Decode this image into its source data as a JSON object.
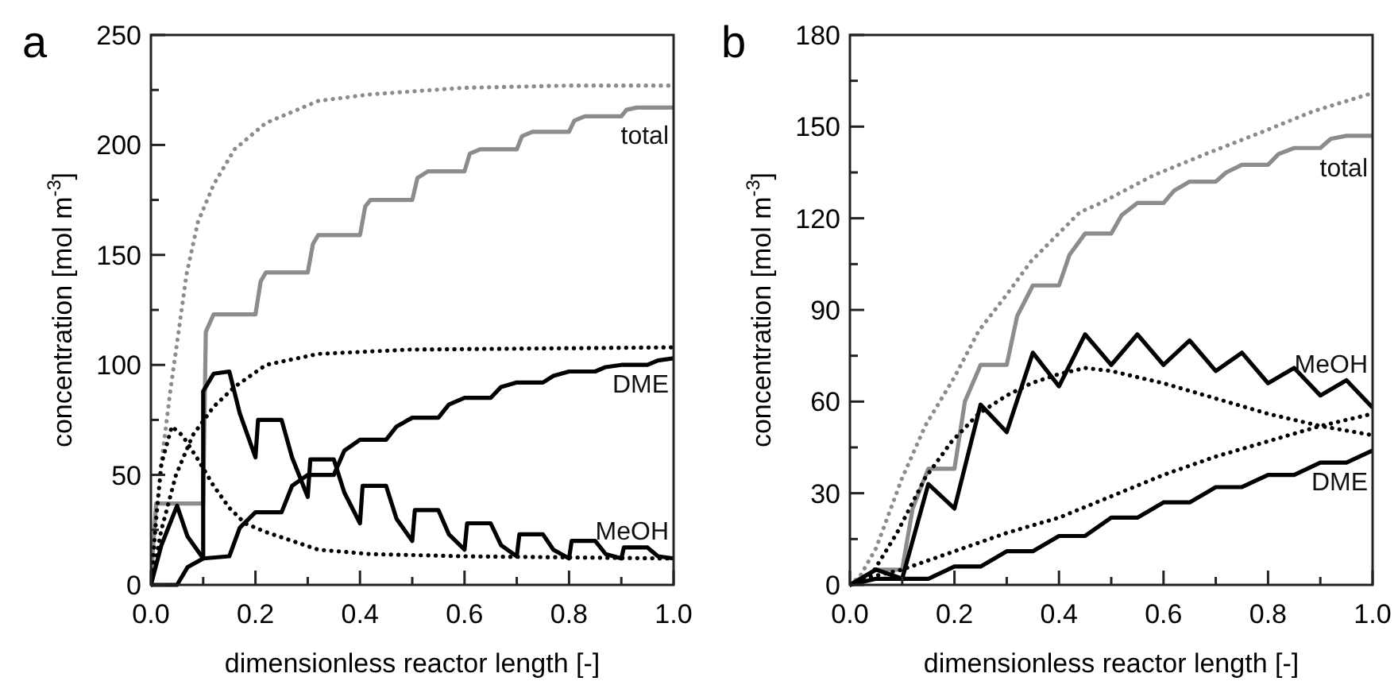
{
  "chart_data": [
    {
      "type": "line",
      "title": "a",
      "xlabel": "dimensionless reactor length [-]",
      "ylabel": "concentration [mol m$^{-3}$]",
      "xlim": [
        0,
        1
      ],
      "ylim": [
        0,
        250
      ],
      "xticks": [
        {
          "value": 0,
          "label": "0.0"
        },
        {
          "value": 0.1,
          "label": null
        },
        {
          "value": 0.2,
          "label": "0.2"
        },
        {
          "value": 0.3,
          "label": null
        },
        {
          "value": 0.4,
          "label": "0.4"
        },
        {
          "value": 0.5,
          "label": null
        },
        {
          "value": 0.6,
          "label": "0.6"
        },
        {
          "value": 0.7,
          "label": null
        },
        {
          "value": 0.8,
          "label": "0.8"
        },
        {
          "value": 0.9,
          "label": null
        },
        {
          "value": 1,
          "label": "1.0"
        }
      ],
      "yticks": [
        0,
        {
          "value": 25,
          "label": null
        },
        50,
        {
          "value": 75,
          "label": null
        },
        100,
        {
          "value": 125,
          "label": null
        },
        150,
        {
          "value": 175,
          "label": null
        },
        200,
        {
          "value": 225,
          "label": null
        },
        250
      ],
      "series": [
        {
          "color": "#8c8c8c",
          "line_style": "dotted",
          "x": [
            0,
            0.01,
            0.02,
            0.037,
            0.05,
            0.068,
            0.09,
            0.12,
            0.16,
            0.22,
            0.32,
            0.42,
            0.6,
            0.8,
            1
          ],
          "values": [
            0,
            30,
            55,
            88,
            110,
            141,
            165,
            182,
            198,
            210,
            220,
            223,
            226,
            227,
            227
          ]
        },
        {
          "name": "total",
          "color": "#8c8c8c",
          "line_style": "solid",
          "x": [
            0,
            0.005,
            0.01,
            0.1,
            0.105,
            0.12,
            0.2,
            0.21,
            0.22,
            0.3,
            0.31,
            0.32,
            0.4,
            0.41,
            0.42,
            0.5,
            0.51,
            0.53,
            0.6,
            0.61,
            0.63,
            0.7,
            0.71,
            0.73,
            0.8,
            0.81,
            0.83,
            0.9,
            0.91,
            0.93,
            1
          ],
          "values": [
            0,
            20,
            37,
            37,
            115,
            123,
            123,
            138,
            142,
            142,
            155,
            159,
            159,
            172,
            175,
            175,
            185,
            188,
            188,
            196,
            198,
            198,
            204,
            206,
            206,
            211,
            213,
            213,
            216,
            217,
            217
          ]
        },
        {
          "color": "#000000",
          "line_style": "dotted",
          "x": [
            0,
            0.02,
            0.048,
            0.08,
            0.12,
            0.16,
            0.22,
            0.32,
            0.5,
            1
          ],
          "values": [
            0,
            25,
            50,
            68,
            81,
            90,
            100,
            105,
            107,
            108
          ]
        },
        {
          "name": "DME",
          "color": "#000000",
          "line_style": "solid",
          "x": [
            0,
            0.05,
            0.07,
            0.1,
            0.15,
            0.17,
            0.2,
            0.25,
            0.27,
            0.3,
            0.35,
            0.37,
            0.4,
            0.45,
            0.47,
            0.5,
            0.55,
            0.57,
            0.6,
            0.65,
            0.67,
            0.7,
            0.75,
            0.77,
            0.8,
            0.85,
            0.87,
            0.9,
            0.95,
            0.97,
            1
          ],
          "values": [
            0,
            0,
            8,
            12,
            13,
            26,
            33,
            33,
            45,
            50,
            50,
            61,
            66,
            66,
            72,
            76,
            76,
            82,
            85,
            85,
            90,
            92,
            92,
            95,
            97,
            97,
            99,
            100,
            100,
            102,
            103
          ]
        },
        {
          "color": "#000000",
          "line_style": "dotted",
          "x": [
            0,
            0.01,
            0.02,
            0.04,
            0.06,
            0.09,
            0.12,
            0.15,
            0.18,
            0.22,
            0.32,
            0.42,
            0.6,
            1
          ],
          "values": [
            0,
            30,
            55,
            72,
            68,
            57,
            45,
            35,
            28,
            24,
            16,
            14,
            13,
            12
          ]
        },
        {
          "name": "MeOH",
          "color": "#000000",
          "line_style": "solid",
          "x": [
            0,
            0.02,
            0.05,
            0.07,
            0.1,
            0.1,
            0.12,
            0.15,
            0.17,
            0.2,
            0.205,
            0.25,
            0.27,
            0.3,
            0.305,
            0.35,
            0.37,
            0.4,
            0.405,
            0.45,
            0.47,
            0.5,
            0.505,
            0.55,
            0.57,
            0.6,
            0.605,
            0.65,
            0.67,
            0.7,
            0.705,
            0.75,
            0.77,
            0.8,
            0.805,
            0.85,
            0.87,
            0.9,
            0.905,
            0.95,
            0.97,
            1
          ],
          "values": [
            0,
            18,
            36,
            22,
            12,
            88,
            96,
            97,
            78,
            58,
            75,
            75,
            58,
            40,
            57,
            57,
            42,
            28,
            45,
            45,
            30,
            20,
            34,
            34,
            23,
            16,
            28,
            28,
            18,
            13,
            23,
            23,
            16,
            12,
            20,
            20,
            14,
            12,
            17,
            17,
            13,
            12
          ]
        }
      ]
    },
    {
      "type": "line",
      "title": "b",
      "xlabel": "dimensionless reactor length [-]",
      "ylabel": "concentration [mol m$^{-3}$]",
      "xlim": [
        0,
        1
      ],
      "ylim": [
        0,
        180
      ],
      "xticks": [
        {
          "value": 0,
          "label": "0.0"
        },
        {
          "value": 0.1,
          "label": null
        },
        {
          "value": 0.2,
          "label": "0.2"
        },
        {
          "value": 0.3,
          "label": null
        },
        {
          "value": 0.4,
          "label": "0.4"
        },
        {
          "value": 0.5,
          "label": null
        },
        {
          "value": 0.6,
          "label": "0.6"
        },
        {
          "value": 0.7,
          "label": null
        },
        {
          "value": 0.8,
          "label": "0.8"
        },
        {
          "value": 0.9,
          "label": null
        },
        {
          "value": 1,
          "label": "1.0"
        }
      ],
      "yticks": [
        0,
        {
          "value": 15,
          "label": null
        },
        30,
        {
          "value": 45,
          "label": null
        },
        60,
        {
          "value": 75,
          "label": null
        },
        90,
        {
          "value": 105,
          "label": null
        },
        120,
        {
          "value": 135,
          "label": null
        },
        150,
        {
          "value": 165,
          "label": null
        },
        180
      ],
      "series": [
        {
          "color": "#8c8c8c",
          "line_style": "dotted",
          "x": [
            0,
            0.02,
            0.05,
            0.1,
            0.144,
            0.2,
            0.246,
            0.3,
            0.347,
            0.44,
            0.48,
            0.58,
            0.68,
            0.785,
            0.886,
            1
          ],
          "values": [
            0,
            3,
            12,
            35,
            52,
            68,
            83,
            95,
            106,
            122,
            125,
            134,
            141,
            148,
            155,
            161
          ]
        },
        {
          "name": "total",
          "color": "#8c8c8c",
          "line_style": "solid",
          "x": [
            0,
            0.05,
            0.1,
            0.12,
            0.15,
            0.2,
            0.22,
            0.25,
            0.3,
            0.32,
            0.35,
            0.4,
            0.42,
            0.45,
            0.5,
            0.52,
            0.55,
            0.6,
            0.62,
            0.65,
            0.7,
            0.72,
            0.75,
            0.8,
            0.82,
            0.85,
            0.9,
            0.92,
            0.95,
            1
          ],
          "values": [
            0,
            5,
            5,
            25,
            38,
            38,
            60,
            72,
            72,
            88,
            98,
            98,
            108,
            115,
            115,
            121,
            125,
            125,
            129,
            132,
            132,
            135,
            137.5,
            137.5,
            141,
            143,
            143,
            146,
            147,
            147
          ]
        },
        {
          "color": "#000000",
          "line_style": "dotted",
          "x": [
            0,
            0.04,
            0.09,
            0.144,
            0.195,
            0.246,
            0.3,
            0.347,
            0.4,
            0.45,
            0.5,
            0.6,
            0.7,
            0.8,
            0.9,
            1
          ],
          "values": [
            0,
            3,
            17,
            35,
            47,
            56,
            62,
            66,
            69,
            71,
            70,
            66,
            61,
            56,
            52,
            49
          ]
        },
        {
          "name": "MeOH",
          "color": "#000000",
          "line_style": "solid",
          "x": [
            0,
            0.05,
            0.1,
            0.15,
            0.2,
            0.25,
            0.3,
            0.35,
            0.4,
            0.45,
            0.5,
            0.55,
            0.6,
            0.65,
            0.7,
            0.75,
            0.8,
            0.85,
            0.9,
            0.95,
            1
          ],
          "values": [
            0,
            5,
            2,
            33,
            25,
            59,
            50,
            76,
            65,
            82,
            72,
            82,
            72,
            80,
            70,
            76,
            66,
            71,
            62,
            67,
            58
          ]
        },
        {
          "color": "#000000",
          "line_style": "dotted",
          "x": [
            0,
            0.05,
            0.1,
            0.15,
            0.2,
            0.3,
            0.4,
            0.5,
            0.6,
            0.7,
            0.8,
            0.9,
            1
          ],
          "values": [
            0,
            3,
            5,
            8,
            11,
            17,
            22,
            29,
            36,
            42,
            47,
            52,
            56
          ]
        },
        {
          "name": "DME",
          "color": "#000000",
          "line_style": "solid",
          "x": [
            0,
            0.05,
            0.15,
            0.2,
            0.25,
            0.3,
            0.35,
            0.4,
            0.45,
            0.5,
            0.55,
            0.6,
            0.65,
            0.7,
            0.75,
            0.8,
            0.85,
            0.9,
            0.95,
            1
          ],
          "values": [
            0,
            2,
            2,
            6,
            6,
            11,
            11,
            16,
            16,
            22,
            22,
            27,
            27,
            32,
            32,
            36,
            36,
            40,
            40,
            44
          ]
        }
      ]
    }
  ]
}
